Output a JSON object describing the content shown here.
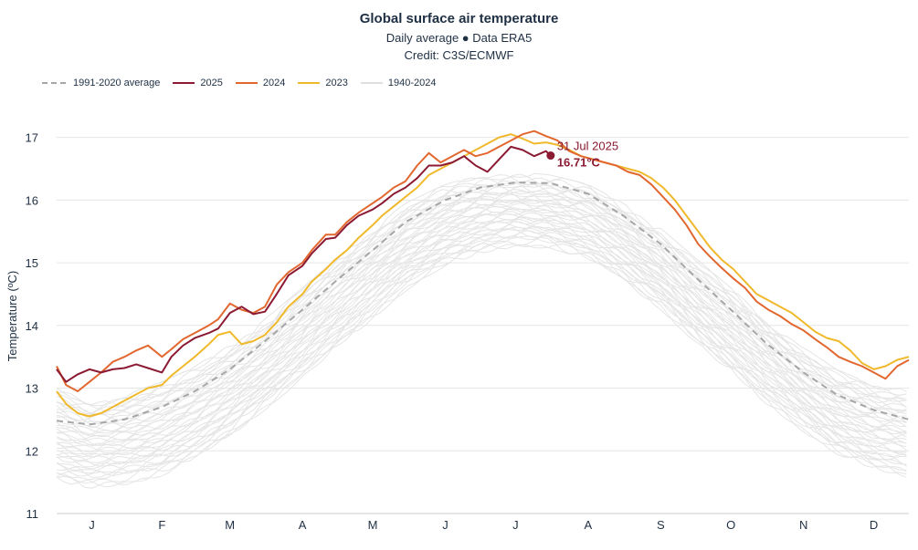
{
  "header": {
    "title": "Global surface air temperature",
    "subtitle": "Daily average ● Data ERA5",
    "credit": "Credit: C3S/ECMWF"
  },
  "legend": [
    {
      "label": "1991-2020 average",
      "color": "#a6a6a6",
      "dash": true
    },
    {
      "label": "2025",
      "color": "#8b1a32",
      "dash": false
    },
    {
      "label": "2024",
      "color": "#e2672f",
      "dash": false
    },
    {
      "label": "2023",
      "color": "#f0b92c",
      "dash": false
    },
    {
      "label": "1940-2024",
      "color": "#e5e5e5",
      "dash": false
    }
  ],
  "annotation": {
    "date": "31 Jul 2025",
    "value": "16.71°C"
  },
  "chart_data": {
    "type": "line",
    "title": "Global surface air temperature",
    "subtitle": "Daily average ● Data ERA5",
    "ylabel": "Temperature (ºC)",
    "xlabel": "",
    "ylim": [
      11,
      17.3
    ],
    "xlim": [
      1,
      365
    ],
    "yticks": [
      11,
      12,
      13,
      14,
      15,
      16,
      17
    ],
    "xticks": [
      {
        "label": "J",
        "day": 16
      },
      {
        "label": "F",
        "day": 46
      },
      {
        "label": "M",
        "day": 75
      },
      {
        "label": "A",
        "day": 106
      },
      {
        "label": "M",
        "day": 136
      },
      {
        "label": "J",
        "day": 167
      },
      {
        "label": "J",
        "day": 197
      },
      {
        "label": "A",
        "day": 228
      },
      {
        "label": "S",
        "day": 259
      },
      {
        "label": "O",
        "day": 289
      },
      {
        "label": "N",
        "day": 320
      },
      {
        "label": "D",
        "day": 350
      }
    ],
    "grid": true,
    "legend_position": "top-left",
    "series": [
      {
        "name": "1991-2020 average",
        "color": "#a6a6a6",
        "dash": true,
        "x": [
          1,
          15,
          30,
          46,
          60,
          75,
          90,
          106,
          120,
          136,
          150,
          167,
          182,
          197,
          212,
          228,
          243,
          259,
          273,
          289,
          304,
          320,
          334,
          350,
          365
        ],
        "y": [
          12.48,
          12.42,
          12.5,
          12.7,
          12.95,
          13.3,
          13.75,
          14.25,
          14.7,
          15.2,
          15.65,
          16.0,
          16.2,
          16.28,
          16.27,
          16.1,
          15.75,
          15.3,
          14.8,
          14.25,
          13.72,
          13.25,
          12.9,
          12.65,
          12.5
        ]
      },
      {
        "name": "2025",
        "color": "#8b1a32",
        "dash": false,
        "x": [
          1,
          5,
          10,
          15,
          20,
          25,
          30,
          35,
          40,
          46,
          50,
          55,
          60,
          66,
          70,
          75,
          80,
          85,
          90,
          95,
          100,
          106,
          110,
          116,
          120,
          125,
          130,
          136,
          140,
          145,
          150,
          155,
          160,
          165,
          170,
          175,
          180,
          185,
          190,
          195,
          200,
          205,
          210,
          212
        ],
        "y": [
          13.3,
          13.1,
          13.22,
          13.3,
          13.25,
          13.3,
          13.32,
          13.38,
          13.32,
          13.25,
          13.5,
          13.68,
          13.8,
          13.88,
          13.95,
          14.2,
          14.3,
          14.18,
          14.22,
          14.5,
          14.8,
          14.95,
          15.15,
          15.38,
          15.4,
          15.6,
          15.75,
          15.85,
          15.95,
          16.1,
          16.2,
          16.35,
          16.55,
          16.55,
          16.6,
          16.7,
          16.55,
          16.45,
          16.65,
          16.85,
          16.8,
          16.7,
          16.78,
          16.71
        ]
      },
      {
        "name": "2024",
        "color": "#e2672f",
        "dash": false,
        "x": [
          1,
          5,
          10,
          15,
          20,
          25,
          30,
          35,
          40,
          46,
          50,
          55,
          60,
          66,
          70,
          75,
          80,
          85,
          90,
          95,
          100,
          106,
          110,
          116,
          120,
          125,
          130,
          136,
          140,
          145,
          150,
          155,
          160,
          165,
          170,
          175,
          180,
          185,
          190,
          195,
          200,
          205,
          210,
          215,
          220,
          225,
          230,
          235,
          240,
          245,
          250,
          255,
          260,
          265,
          270,
          275,
          280,
          285,
          290,
          295,
          300,
          305,
          310,
          315,
          320,
          325,
          330,
          335,
          340,
          345,
          350,
          355,
          360,
          365
        ],
        "y": [
          13.35,
          13.05,
          12.95,
          13.1,
          13.25,
          13.42,
          13.5,
          13.6,
          13.68,
          13.5,
          13.62,
          13.78,
          13.88,
          14.0,
          14.1,
          14.35,
          14.25,
          14.2,
          14.3,
          14.65,
          14.85,
          15.0,
          15.2,
          15.45,
          15.45,
          15.65,
          15.8,
          15.95,
          16.05,
          16.2,
          16.3,
          16.55,
          16.75,
          16.6,
          16.7,
          16.8,
          16.7,
          16.75,
          16.85,
          16.95,
          17.05,
          17.1,
          17.02,
          16.95,
          16.78,
          16.7,
          16.65,
          16.6,
          16.55,
          16.45,
          16.4,
          16.25,
          16.05,
          15.85,
          15.6,
          15.3,
          15.1,
          14.92,
          14.75,
          14.6,
          14.38,
          14.25,
          14.15,
          14.02,
          13.92,
          13.78,
          13.65,
          13.5,
          13.42,
          13.35,
          13.25,
          13.15,
          13.35,
          13.45
        ]
      },
      {
        "name": "2023",
        "color": "#f0b92c",
        "dash": false,
        "x": [
          1,
          5,
          10,
          15,
          20,
          25,
          30,
          35,
          40,
          46,
          50,
          55,
          60,
          66,
          70,
          75,
          80,
          85,
          90,
          95,
          100,
          106,
          110,
          116,
          120,
          125,
          130,
          136,
          140,
          145,
          150,
          155,
          160,
          165,
          170,
          175,
          180,
          185,
          190,
          195,
          200,
          205,
          210,
          215,
          220,
          225,
          230,
          235,
          240,
          245,
          250,
          255,
          260,
          265,
          270,
          275,
          280,
          285,
          290,
          295,
          300,
          305,
          310,
          315,
          320,
          325,
          330,
          335,
          340,
          345,
          350,
          355,
          360,
          365
        ],
        "y": [
          12.95,
          12.75,
          12.6,
          12.55,
          12.6,
          12.7,
          12.8,
          12.9,
          13.0,
          13.05,
          13.2,
          13.35,
          13.5,
          13.7,
          13.85,
          13.9,
          13.7,
          13.75,
          13.85,
          14.05,
          14.3,
          14.5,
          14.7,
          14.9,
          15.05,
          15.2,
          15.4,
          15.6,
          15.75,
          15.9,
          16.05,
          16.2,
          16.4,
          16.5,
          16.6,
          16.7,
          16.8,
          16.9,
          17.0,
          17.05,
          16.98,
          16.9,
          16.92,
          16.88,
          16.8,
          16.7,
          16.65,
          16.6,
          16.55,
          16.5,
          16.45,
          16.35,
          16.2,
          16.0,
          15.75,
          15.5,
          15.25,
          15.05,
          14.9,
          14.7,
          14.5,
          14.4,
          14.3,
          14.2,
          14.05,
          13.9,
          13.8,
          13.75,
          13.6,
          13.4,
          13.3,
          13.35,
          13.45,
          13.5
        ]
      }
    ],
    "background_range": {
      "name": "1940-2024",
      "color": "#e5e5e5",
      "x": [
        1,
        15,
        30,
        46,
        60,
        75,
        90,
        106,
        120,
        136,
        150,
        167,
        182,
        197,
        212,
        228,
        243,
        259,
        273,
        289,
        304,
        320,
        334,
        350,
        365
      ],
      "low": [
        11.55,
        11.45,
        11.5,
        11.65,
        11.9,
        12.25,
        12.7,
        13.2,
        13.65,
        14.15,
        14.6,
        15.0,
        15.2,
        15.3,
        15.28,
        15.1,
        14.75,
        14.3,
        13.8,
        13.3,
        12.8,
        12.35,
        12.0,
        11.75,
        11.6
      ],
      "high": [
        12.95,
        12.75,
        12.85,
        13.05,
        13.3,
        13.65,
        14.05,
        14.55,
        15.0,
        15.5,
        15.9,
        16.2,
        16.35,
        16.4,
        16.35,
        16.2,
        15.9,
        15.5,
        15.05,
        14.55,
        14.05,
        13.6,
        13.25,
        13.0,
        12.95
      ]
    }
  }
}
